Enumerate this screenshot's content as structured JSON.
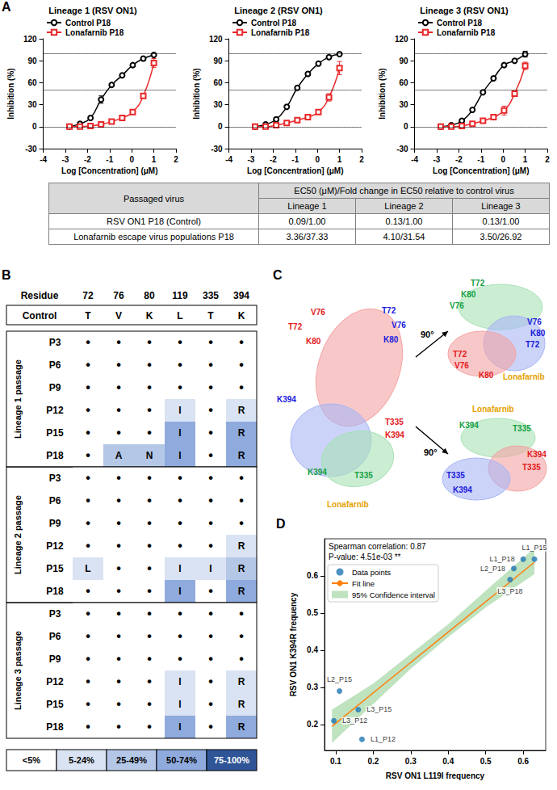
{
  "panel_labels": [
    "A",
    "B",
    "C",
    "D"
  ],
  "chart_data": [
    {
      "type": "line",
      "title": "Lineage 1 (RSV ON1)",
      "x_label": "Log [Concentration] (μM)",
      "y_label": "Inhibition (%)",
      "xlim": [
        -4,
        2
      ],
      "xticks": [
        -4,
        -3,
        -2,
        -1,
        0,
        1,
        2
      ],
      "ylim": [
        -30,
        120
      ],
      "yticks": [
        -30,
        0,
        30,
        60,
        90,
        120
      ],
      "grid": false,
      "legend": "upper left",
      "reference_lines": [
        0,
        50,
        100
      ],
      "x": [
        -2.817,
        -2.34,
        -1.863,
        -1.385,
        -0.908,
        -0.431,
        0.046,
        0.523,
        1.0
      ],
      "series": [
        {
          "name": "Control P18",
          "color": "#000000",
          "marker": "circle",
          "values": [
            0,
            4,
            12,
            37,
            57,
            70,
            84,
            93,
            98
          ],
          "errors": [
            0.5,
            0.5,
            1,
            5,
            2,
            1.5,
            1,
            1,
            1
          ]
        },
        {
          "name": "Lonafarnib P18",
          "color": "#e8282a",
          "marker": "square",
          "values": [
            0,
            0,
            1,
            3,
            7,
            12,
            20,
            42,
            87
          ],
          "errors": [
            0.5,
            0.5,
            0.5,
            1,
            1,
            1.5,
            2,
            3,
            6
          ]
        }
      ]
    },
    {
      "type": "line",
      "title": "Lineage 2 (RSV ON1)",
      "x_label": "Log [Concentration] (μM)",
      "y_label": "Inhibition (%)",
      "xlim": [
        -4,
        2
      ],
      "xticks": [
        -4,
        -3,
        -2,
        -1,
        0,
        1,
        2
      ],
      "ylim": [
        -30,
        120
      ],
      "yticks": [
        -30,
        0,
        30,
        60,
        90,
        120
      ],
      "grid": false,
      "legend": "upper left",
      "reference_lines": [
        0,
        50,
        100
      ],
      "x": [
        -2.817,
        -2.34,
        -1.863,
        -1.385,
        -0.908,
        -0.431,
        0.046,
        0.523,
        1.0
      ],
      "series": [
        {
          "name": "Control P18",
          "color": "#000000",
          "marker": "circle",
          "values": [
            0,
            3,
            10,
            27,
            53,
            72,
            86,
            95,
            99
          ],
          "errors": [
            0.5,
            0.5,
            1,
            1,
            1.5,
            1.5,
            1,
            1,
            1
          ]
        },
        {
          "name": "Lonafarnib P18",
          "color": "#e8282a",
          "marker": "square",
          "values": [
            0,
            0,
            2,
            5,
            9,
            13,
            20,
            40,
            80
          ],
          "errors": [
            0.5,
            0.5,
            1,
            1,
            1,
            1.5,
            3,
            5,
            9
          ]
        }
      ]
    },
    {
      "type": "line",
      "title": "Lineage 3 (RSV ON1)",
      "x_label": "Log [Concentration] (μM)",
      "y_label": "Inhibition (%)",
      "xlim": [
        -4,
        2
      ],
      "xticks": [
        -4,
        -3,
        -2,
        -1,
        0,
        1,
        2
      ],
      "ylim": [
        -30,
        120
      ],
      "yticks": [
        -30,
        0,
        30,
        60,
        90,
        120
      ],
      "grid": false,
      "legend": "upper left",
      "reference_lines": [
        0,
        50,
        100
      ],
      "x": [
        -2.817,
        -2.34,
        -1.863,
        -1.385,
        -0.908,
        -0.431,
        0.046,
        0.523,
        1.0
      ],
      "series": [
        {
          "name": "Control P18",
          "color": "#000000",
          "marker": "circle",
          "values": [
            0,
            2,
            8,
            23,
            47,
            66,
            84,
            90,
            99
          ],
          "errors": [
            0.5,
            0.5,
            1,
            1,
            1.5,
            2,
            1,
            1,
            4
          ]
        },
        {
          "name": "Lonafarnib P18",
          "color": "#e8282a",
          "marker": "square",
          "values": [
            0,
            0,
            1,
            4,
            8,
            13,
            22,
            45,
            83
          ],
          "errors": [
            0.5,
            0.5,
            1,
            1,
            1,
            2,
            6,
            4,
            5
          ]
        }
      ]
    },
    {
      "type": "scatter",
      "x_label": "RSV ON1 L119I frequency",
      "y_label": "RSV ON1 K394R frequency",
      "xlim": [
        0.07,
        0.66
      ],
      "xticks": [
        0.1,
        0.2,
        0.3,
        0.4,
        0.5,
        0.6
      ],
      "ylim": [
        0.13,
        0.7
      ],
      "yticks": [
        0.2,
        0.3,
        0.4,
        0.5,
        0.6
      ],
      "grid": false,
      "legend": "upper left",
      "annotations": [
        "Spearman correlation: 0.87",
        "P-value: 4.51e-03 **"
      ],
      "series": [
        {
          "name": "Data points",
          "type": "scatter",
          "color": "#1f77b4",
          "marker": "circle",
          "point_labels": [
            "L1_P15",
            "L1_P18",
            "L2_P18",
            "L3_P18",
            "L2_P15",
            "L3_P15",
            "L3_P12",
            "L1_P12"
          ],
          "x": [
            0.63,
            0.6,
            0.575,
            0.565,
            0.11,
            0.16,
            0.095,
            0.17
          ],
          "values": [
            0.645,
            0.645,
            0.62,
            0.59,
            0.29,
            0.24,
            0.21,
            0.16
          ]
        },
        {
          "name": "Fit line",
          "type": "line",
          "color": "#ff7f0e",
          "x": [
            0.09,
            0.63
          ],
          "values": [
            0.195,
            0.637
          ]
        },
        {
          "name": "95% Confidence interval",
          "type": "band",
          "color": "#2ca02c",
          "x": [
            0.09,
            0.2,
            0.3,
            0.4,
            0.5,
            0.63
          ],
          "lower": [
            0.15,
            0.255,
            0.35,
            0.435,
            0.515,
            0.605
          ],
          "upper": [
            0.24,
            0.31,
            0.39,
            0.47,
            0.56,
            0.675
          ]
        }
      ]
    }
  ],
  "table_A": {
    "header": [
      "Passaged virus",
      "EC50 (μM)/Fold change in EC50 relative to control virus"
    ],
    "subheader": [
      "Lineage 1",
      "Lineage 2",
      "Lineage 3"
    ],
    "rows": [
      [
        "RSV ON1 P18 (Control)",
        "0.09/1.00",
        "0.13/1.00",
        "0.13/1.00"
      ],
      [
        "Lonafarnib escape virus populations P18",
        "3.36/37.33",
        "4.10/31.54",
        "3.50/26.92"
      ]
    ]
  },
  "table_B": {
    "residue_label": "Residue",
    "residues": [
      72,
      76,
      80,
      119,
      335,
      394
    ],
    "control_label": "Control",
    "control": [
      "T",
      "V",
      "K",
      "L",
      "T",
      "K"
    ],
    "lineages": [
      {
        "label": "Lineage 1 passage",
        "rows": [
          {
            "passage": "P3",
            "cells": [
              "•",
              "•",
              "•",
              "•",
              "•",
              "•"
            ],
            "shades": [
              "<5%",
              "<5%",
              "<5%",
              "<5%",
              "<5%",
              "<5%"
            ]
          },
          {
            "passage": "P6",
            "cells": [
              "•",
              "•",
              "•",
              "•",
              "•",
              "•"
            ],
            "shades": [
              "<5%",
              "<5%",
              "<5%",
              "<5%",
              "<5%",
              "<5%"
            ]
          },
          {
            "passage": "P9",
            "cells": [
              "•",
              "•",
              "•",
              "•",
              "•",
              "•"
            ],
            "shades": [
              "<5%",
              "<5%",
              "<5%",
              "<5%",
              "<5%",
              "<5%"
            ]
          },
          {
            "passage": "P12",
            "cells": [
              "•",
              "•",
              "•",
              "I",
              "•",
              "R"
            ],
            "shades": [
              "<5%",
              "<5%",
              "<5%",
              "5-24%",
              "<5%",
              "5-24%"
            ]
          },
          {
            "passage": "P15",
            "cells": [
              "•",
              "•",
              "•",
              "I",
              "•",
              "R"
            ],
            "shades": [
              "<5%",
              "<5%",
              "<5%",
              "50-74%",
              "<5%",
              "50-74%"
            ]
          },
          {
            "passage": "P18",
            "cells": [
              "•",
              "A",
              "N",
              "I",
              "•",
              "R"
            ],
            "shades": [
              "<5%",
              "25-49%",
              "25-49%",
              "50-74%",
              "<5%",
              "50-74%"
            ]
          }
        ]
      },
      {
        "label": "Lineage 2 passage",
        "rows": [
          {
            "passage": "P3",
            "cells": [
              "•",
              "•",
              "•",
              "•",
              "•",
              "•"
            ],
            "shades": [
              "<5%",
              "<5%",
              "<5%",
              "<5%",
              "<5%",
              "<5%"
            ]
          },
          {
            "passage": "P6",
            "cells": [
              "•",
              "•",
              "•",
              "•",
              "•",
              "•"
            ],
            "shades": [
              "<5%",
              "<5%",
              "<5%",
              "<5%",
              "<5%",
              "<5%"
            ]
          },
          {
            "passage": "P9",
            "cells": [
              "•",
              "•",
              "•",
              "•",
              "•",
              "•"
            ],
            "shades": [
              "<5%",
              "<5%",
              "<5%",
              "<5%",
              "<5%",
              "<5%"
            ]
          },
          {
            "passage": "P12",
            "cells": [
              "•",
              "•",
              "•",
              "•",
              "•",
              "R"
            ],
            "shades": [
              "<5%",
              "<5%",
              "<5%",
              "<5%",
              "<5%",
              "5-24%"
            ]
          },
          {
            "passage": "P15",
            "cells": [
              "L",
              "•",
              "•",
              "I",
              "I",
              "R"
            ],
            "shades": [
              "5-24%",
              "<5%",
              "<5%",
              "5-24%",
              "5-24%",
              "25-49%"
            ]
          },
          {
            "passage": "P18",
            "cells": [
              "•",
              "•",
              "•",
              "I",
              "•",
              "R"
            ],
            "shades": [
              "<5%",
              "<5%",
              "<5%",
              "50-74%",
              "<5%",
              "50-74%"
            ]
          }
        ]
      },
      {
        "label": "Lineage 3 passage",
        "rows": [
          {
            "passage": "P3",
            "cells": [
              "•",
              "•",
              "•",
              "•",
              "•",
              "•"
            ],
            "shades": [
              "<5%",
              "<5%",
              "<5%",
              "<5%",
              "<5%",
              "<5%"
            ]
          },
          {
            "passage": "P6",
            "cells": [
              "•",
              "•",
              "•",
              "•",
              "•",
              "•"
            ],
            "shades": [
              "<5%",
              "<5%",
              "<5%",
              "<5%",
              "<5%",
              "<5%"
            ]
          },
          {
            "passage": "P9",
            "cells": [
              "•",
              "•",
              "•",
              "•",
              "•",
              "•"
            ],
            "shades": [
              "<5%",
              "<5%",
              "<5%",
              "<5%",
              "<5%",
              "<5%"
            ]
          },
          {
            "passage": "P12",
            "cells": [
              "•",
              "•",
              "•",
              "I",
              "•",
              "R"
            ],
            "shades": [
              "<5%",
              "<5%",
              "<5%",
              "5-24%",
              "<5%",
              "5-24%"
            ]
          },
          {
            "passage": "P15",
            "cells": [
              "•",
              "•",
              "•",
              "I",
              "•",
              "R"
            ],
            "shades": [
              "<5%",
              "<5%",
              "<5%",
              "5-24%",
              "<5%",
              "5-24%"
            ]
          },
          {
            "passage": "P18",
            "cells": [
              "•",
              "•",
              "•",
              "I",
              "•",
              "R"
            ],
            "shades": [
              "<5%",
              "<5%",
              "<5%",
              "50-74%",
              "<5%",
              "50-74%"
            ]
          }
        ]
      }
    ],
    "legend": [
      {
        "label": "<5%",
        "color": "#ffffff"
      },
      {
        "label": "5-24%",
        "color": "#dae3f3"
      },
      {
        "label": "25-49%",
        "color": "#b4c7e7"
      },
      {
        "label": "50-74%",
        "color": "#8faadc"
      },
      {
        "label": "75-100%",
        "color": "#2f5597"
      }
    ]
  },
  "diagram_C": {
    "rotation_label": "90°",
    "chain_colors": [
      "#f4a3a3",
      "#a9b6f5",
      "#a8e2b6"
    ],
    "views": [
      {
        "labels": [
          {
            "text": "T72",
            "color": "#e31a1c"
          },
          {
            "text": "V76",
            "color": "#e31a1c"
          },
          {
            "text": "K80",
            "color": "#e31a1c"
          },
          {
            "text": "T72",
            "color": "#1a1adb"
          },
          {
            "text": "V76",
            "color": "#1a1adb"
          },
          {
            "text": "K80",
            "color": "#1a1adb"
          },
          {
            "text": "K394",
            "color": "#1a1adb"
          },
          {
            "text": "T335",
            "color": "#e31a1c"
          },
          {
            "text": "K394",
            "color": "#e31a1c"
          },
          {
            "text": "T335",
            "color": "#15a043"
          },
          {
            "text": "K394",
            "color": "#15a043"
          },
          {
            "text": "Lonafarnib",
            "color": "#e6a100"
          }
        ]
      },
      {
        "labels": [
          {
            "text": "T72",
            "color": "#15a043"
          },
          {
            "text": "K80",
            "color": "#15a043"
          },
          {
            "text": "V76",
            "color": "#15a043"
          },
          {
            "text": "V76",
            "color": "#1a1adb"
          },
          {
            "text": "K80",
            "color": "#1a1adb"
          },
          {
            "text": "T72",
            "color": "#1a1adb"
          },
          {
            "text": "T72",
            "color": "#e31a1c"
          },
          {
            "text": "V76",
            "color": "#e31a1c"
          },
          {
            "text": "K80",
            "color": "#e31a1c"
          },
          {
            "text": "Lonafarnib",
            "color": "#e6a100"
          }
        ]
      },
      {
        "labels": [
          {
            "text": "Lonafarnib",
            "color": "#e6a100"
          },
          {
            "text": "K394",
            "color": "#15a043"
          },
          {
            "text": "T335",
            "color": "#15a043"
          },
          {
            "text": "K394",
            "color": "#e31a1c"
          },
          {
            "text": "T335",
            "color": "#e31a1c"
          },
          {
            "text": "T335",
            "color": "#1a1adb"
          },
          {
            "text": "K394",
            "color": "#1a1adb"
          }
        ]
      }
    ]
  }
}
